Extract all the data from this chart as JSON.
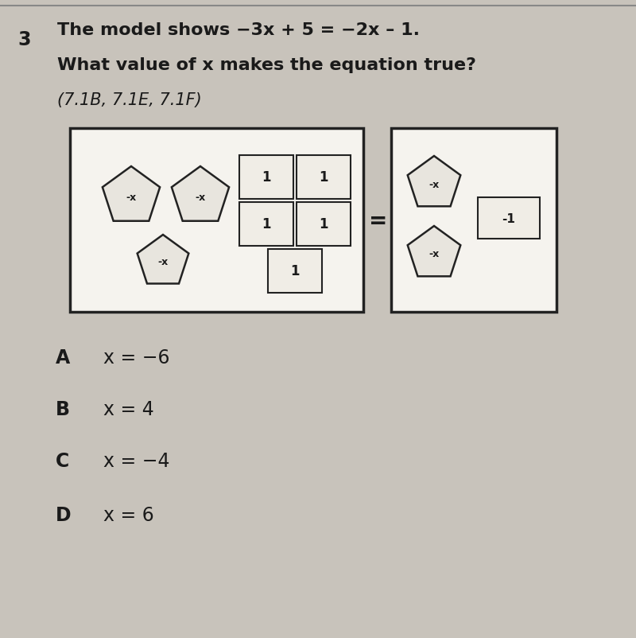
{
  "bg_color": "#c8c3bb",
  "text_color": "#1a1a1a",
  "title_line1": "The model shows −3x + 5 = −2x – 1.",
  "title_line2": "What value of x makes the equation true?",
  "title_line3": "(7.1B, 7.1E, 7.1F)",
  "question_number": "3",
  "choices": [
    {
      "letter": "A",
      "text": "x = −6"
    },
    {
      "letter": "B",
      "text": "x = 4"
    },
    {
      "letter": "C",
      "text": "x = −4"
    },
    {
      "letter": "D",
      "text": "x = 6"
    }
  ],
  "top_line_color": "#888888",
  "box_facecolor": "#f5f3ee",
  "box_edgecolor": "#222222",
  "pent_facecolor": "#e8e5de",
  "pent_edgecolor": "#222222",
  "tile_facecolor": "#f0ede6",
  "tile_edgecolor": "#222222"
}
